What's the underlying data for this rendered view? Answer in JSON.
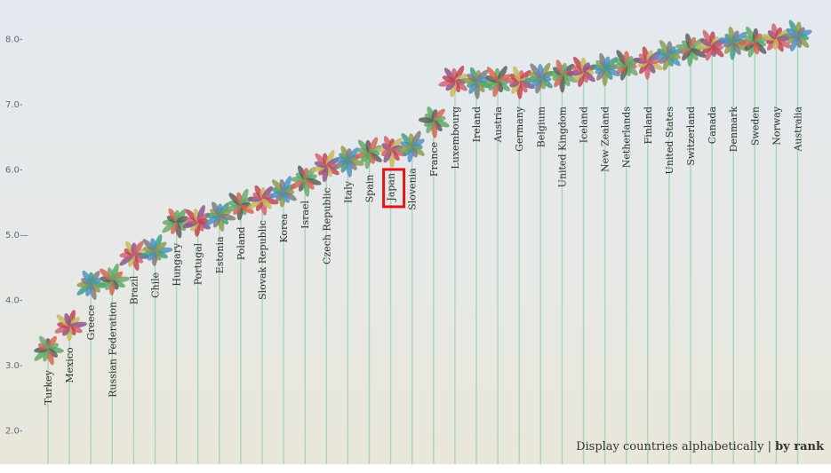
{
  "sort_controls": {
    "alphabetical_label": "Display countries alphabetically",
    "separator": "|",
    "rank_label": "by rank",
    "active": "rank"
  },
  "highlighted_country": "Japan",
  "chart_data": {
    "type": "scatter",
    "title": "",
    "xlabel": "",
    "ylabel": "",
    "ylim": [
      2.0,
      8.4
    ],
    "yticks": [
      {
        "value": 2.0,
        "label": "2.0-"
      },
      {
        "value": 3.0,
        "label": "3.0-"
      },
      {
        "value": 4.0,
        "label": "4.0-"
      },
      {
        "value": 5.0,
        "label": "5.0—"
      },
      {
        "value": 6.0,
        "label": "6.0-"
      },
      {
        "value": 7.0,
        "label": "7.0-"
      },
      {
        "value": 8.0,
        "label": "8.0-"
      }
    ],
    "categories": [
      "Turkey",
      "Mexico",
      "Greece",
      "Russian Federation",
      "Brazil",
      "Chile",
      "Hungary",
      "Portugal",
      "Estonia",
      "Poland",
      "Slovak Republic",
      "Korea",
      "Israel",
      "Czech Republic",
      "Italy",
      "Spain",
      "Japan",
      "Slovenia",
      "France",
      "Luxembourg",
      "Ireland",
      "Austria",
      "Germany",
      "Belgium",
      "United Kingdom",
      "Iceland",
      "New Zealand",
      "Netherlands",
      "Finland",
      "United States",
      "Switzerland",
      "Canada",
      "Denmark",
      "Sweden",
      "Norway",
      "Australia"
    ],
    "values": [
      3.25,
      3.6,
      4.25,
      4.3,
      4.7,
      4.75,
      5.2,
      5.2,
      5.3,
      5.45,
      5.55,
      5.65,
      5.85,
      6.05,
      6.15,
      6.25,
      6.3,
      6.35,
      6.75,
      7.35,
      7.35,
      7.35,
      7.35,
      7.4,
      7.45,
      7.5,
      7.55,
      7.6,
      7.65,
      7.75,
      7.85,
      7.9,
      7.95,
      7.95,
      8.0,
      8.05
    ],
    "petal_colors": [
      "#5a5a5a",
      "#c1414d",
      "#7a7a7a",
      "#d8624b",
      "#c7b85a",
      "#4f8fc4",
      "#6fa36b",
      "#8d4f88",
      "#3d9b8a",
      "#5ba860",
      "#cf5f6e",
      "#8c9a4c"
    ],
    "grid": false
  }
}
